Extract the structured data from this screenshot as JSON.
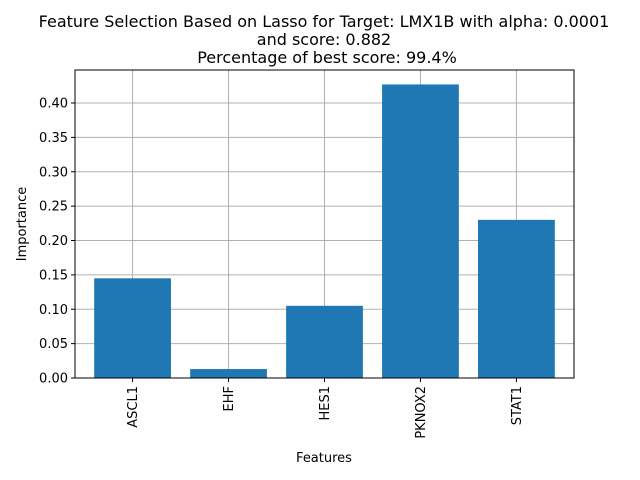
{
  "chart_data": {
    "type": "bar",
    "title_lines": [
      "Feature Selection Based on Lasso for Target: LMX1B with alpha: 0.0001",
      "and score: 0.882",
      "Percentage of best score: 99.4%"
    ],
    "xlabel": "Features",
    "ylabel": "Importance",
    "categories": [
      "ASCL1",
      "EHF",
      "HES1",
      "PKNOX2",
      "STAT1"
    ],
    "values": [
      0.145,
      0.013,
      0.105,
      0.427,
      0.23
    ],
    "ylim": [
      0,
      0.448
    ],
    "yticks": [
      0.0,
      0.05,
      0.1,
      0.15,
      0.2,
      0.25,
      0.3,
      0.35,
      0.4
    ],
    "ytick_labels": [
      "0.00",
      "0.05",
      "0.10",
      "0.15",
      "0.20",
      "0.25",
      "0.30",
      "0.35",
      "0.40"
    ],
    "grid": true,
    "bar_color": "#1f77b4",
    "grid_color": "#b0b0b0"
  }
}
